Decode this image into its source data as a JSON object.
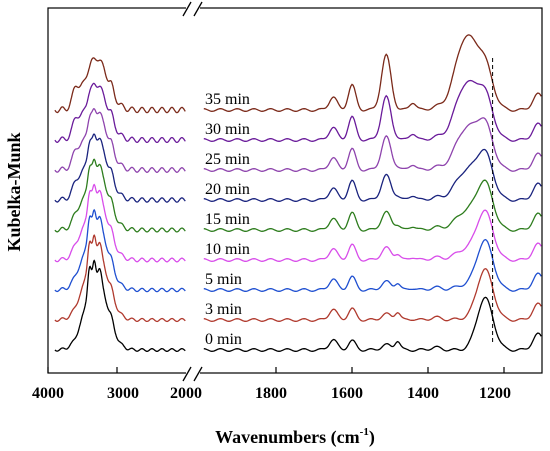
{
  "chart_data": {
    "type": "line",
    "xlabel": "Wavenumbers (cm",
    "xlabel_sup": "-1",
    "xlabel_tail": ")",
    "ylabel": "Kubelka-Munk",
    "axis_break": true,
    "x_left_range": [
      4000,
      2000
    ],
    "x_right_range": [
      2000,
      1100
    ],
    "x_ticks": [
      "4000",
      "3000",
      "2000",
      "1800",
      "1600",
      "1400",
      "1200"
    ],
    "dashed_marker_x": 1230,
    "series": [
      {
        "label": "0 min",
        "color": "#000000"
      },
      {
        "label": "3 min",
        "color": "#b03a2e"
      },
      {
        "label": "5 min",
        "color": "#1f4fd0"
      },
      {
        "label": "10 min",
        "color": "#d84dea"
      },
      {
        "label": "15 min",
        "color": "#2e7d1e"
      },
      {
        "label": "20 min",
        "color": "#1a237e"
      },
      {
        "label": "25 min",
        "color": "#8e44ad"
      },
      {
        "label": "30 min",
        "color": "#6a1b9a"
      },
      {
        "label": "35 min",
        "color": "#7b2a1a"
      }
    ],
    "grid": false
  }
}
